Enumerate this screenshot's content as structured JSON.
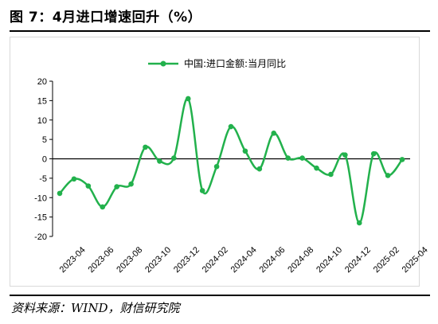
{
  "title": "图 7：4月进口增速回升（%）",
  "source": "资料来源：WIND，财信研究院",
  "colors": {
    "series": "#22b14c",
    "axis": "#000000"
  },
  "chart_data": {
    "type": "line",
    "title": "",
    "xlabel": "",
    "ylabel": "",
    "ylim": [
      -20,
      20
    ],
    "yticks": [
      20,
      15,
      10,
      5,
      0,
      -5,
      -10,
      -15,
      -20
    ],
    "legend_position": "top",
    "x": [
      "2023-04",
      "2023-05",
      "2023-06",
      "2023-07",
      "2023-08",
      "2023-09",
      "2023-10",
      "2023-11",
      "2023-12",
      "2024-01",
      "2024-02",
      "2024-03",
      "2024-04",
      "2024-05",
      "2024-06",
      "2024-07",
      "2024-08",
      "2024-09",
      "2024-10",
      "2024-11",
      "2024-12",
      "2025-01",
      "2025-02",
      "2025-03",
      "2025-04"
    ],
    "xtick_labels": [
      "2023-04",
      "2023-06",
      "2023-08",
      "2023-10",
      "2023-12",
      "2024-02",
      "2024-04",
      "2024-06",
      "2024-08",
      "2024-10",
      "2024-12",
      "2025-02",
      "2025-04"
    ],
    "series": [
      {
        "name": "中国:进口金额:当月同比",
        "values": [
          -8.9,
          -5.2,
          -7.0,
          -12.4,
          -7.2,
          -6.5,
          3.0,
          -0.6,
          0.2,
          15.5,
          -8.2,
          -2.0,
          8.3,
          2.0,
          -2.6,
          6.6,
          0.2,
          0.2,
          -2.4,
          -4.0,
          1.0,
          -16.5,
          1.3,
          -4.3,
          -0.2
        ]
      }
    ]
  }
}
